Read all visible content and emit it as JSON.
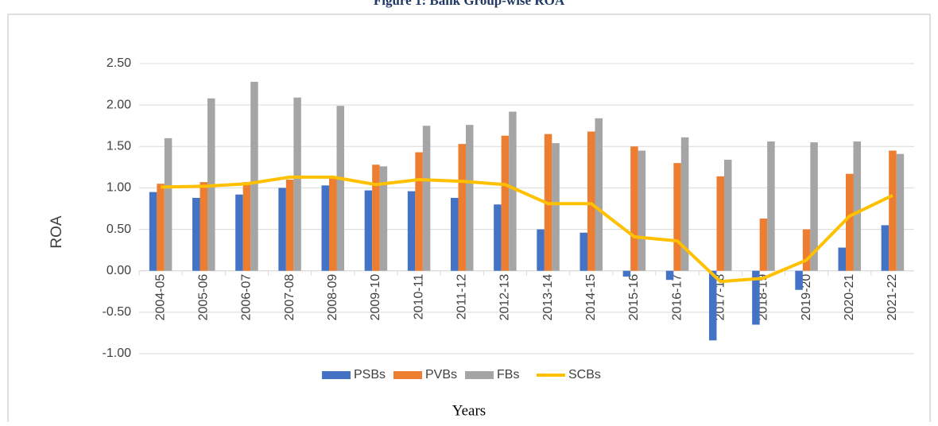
{
  "chart_data": {
    "type": "bar",
    "title": "Figure 1: Bank Group-wise ROA",
    "x_label": "Years",
    "y_label": "ROA",
    "categories": [
      "2004-05",
      "2005-06",
      "2006-07",
      "2007-08",
      "2008-09",
      "2009-10",
      "2010-11",
      "2011-12",
      "2012-13",
      "2013-14",
      "2014-15",
      "2015-16",
      "2016-17",
      "2017-18",
      "2018-19",
      "2019-20",
      "2020-21",
      "2021-22"
    ],
    "series": [
      {
        "name": "PSBs",
        "color": "#4472c4",
        "values": [
          0.95,
          0.88,
          0.92,
          1.0,
          1.03,
          0.97,
          0.96,
          0.88,
          0.8,
          0.5,
          0.46,
          -0.07,
          -0.11,
          -0.84,
          -0.65,
          -0.23,
          0.28,
          0.55
        ]
      },
      {
        "name": "PVBs",
        "color": "#ed7d31",
        "values": [
          1.05,
          1.07,
          1.07,
          1.1,
          1.13,
          1.28,
          1.43,
          1.53,
          1.63,
          1.65,
          1.68,
          1.5,
          1.3,
          1.14,
          0.63,
          0.5,
          1.17,
          1.45
        ]
      },
      {
        "name": "FBs",
        "color": "#a5a5a5",
        "values": [
          1.6,
          2.08,
          2.28,
          2.09,
          1.99,
          1.26,
          1.75,
          1.76,
          1.92,
          1.54,
          1.84,
          1.45,
          1.61,
          1.34,
          1.56,
          1.55,
          1.56,
          1.41
        ]
      },
      {
        "name": "SCBs",
        "color": "#ffc000",
        "type": "line",
        "values": [
          1.01,
          1.02,
          1.05,
          1.13,
          1.13,
          1.04,
          1.1,
          1.08,
          1.04,
          0.81,
          0.81,
          0.41,
          0.36,
          -0.13,
          -0.09,
          0.13,
          0.66,
          0.91
        ]
      }
    ],
    "ylim": [
      -1,
      2.5
    ],
    "yticks": [
      {
        "value": -1,
        "label": "-1.00"
      },
      {
        "value": -0.5,
        "label": "-0.50"
      },
      {
        "value": 0,
        "label": "0.00"
      },
      {
        "value": 0.5,
        "label": "0.50"
      },
      {
        "value": 1,
        "label": "1.00"
      },
      {
        "value": 1.5,
        "label": "1.50"
      },
      {
        "value": 2,
        "label": "2.00"
      },
      {
        "value": 2.5,
        "label": "2.50"
      }
    ],
    "grid": true,
    "legend": "bottom"
  }
}
